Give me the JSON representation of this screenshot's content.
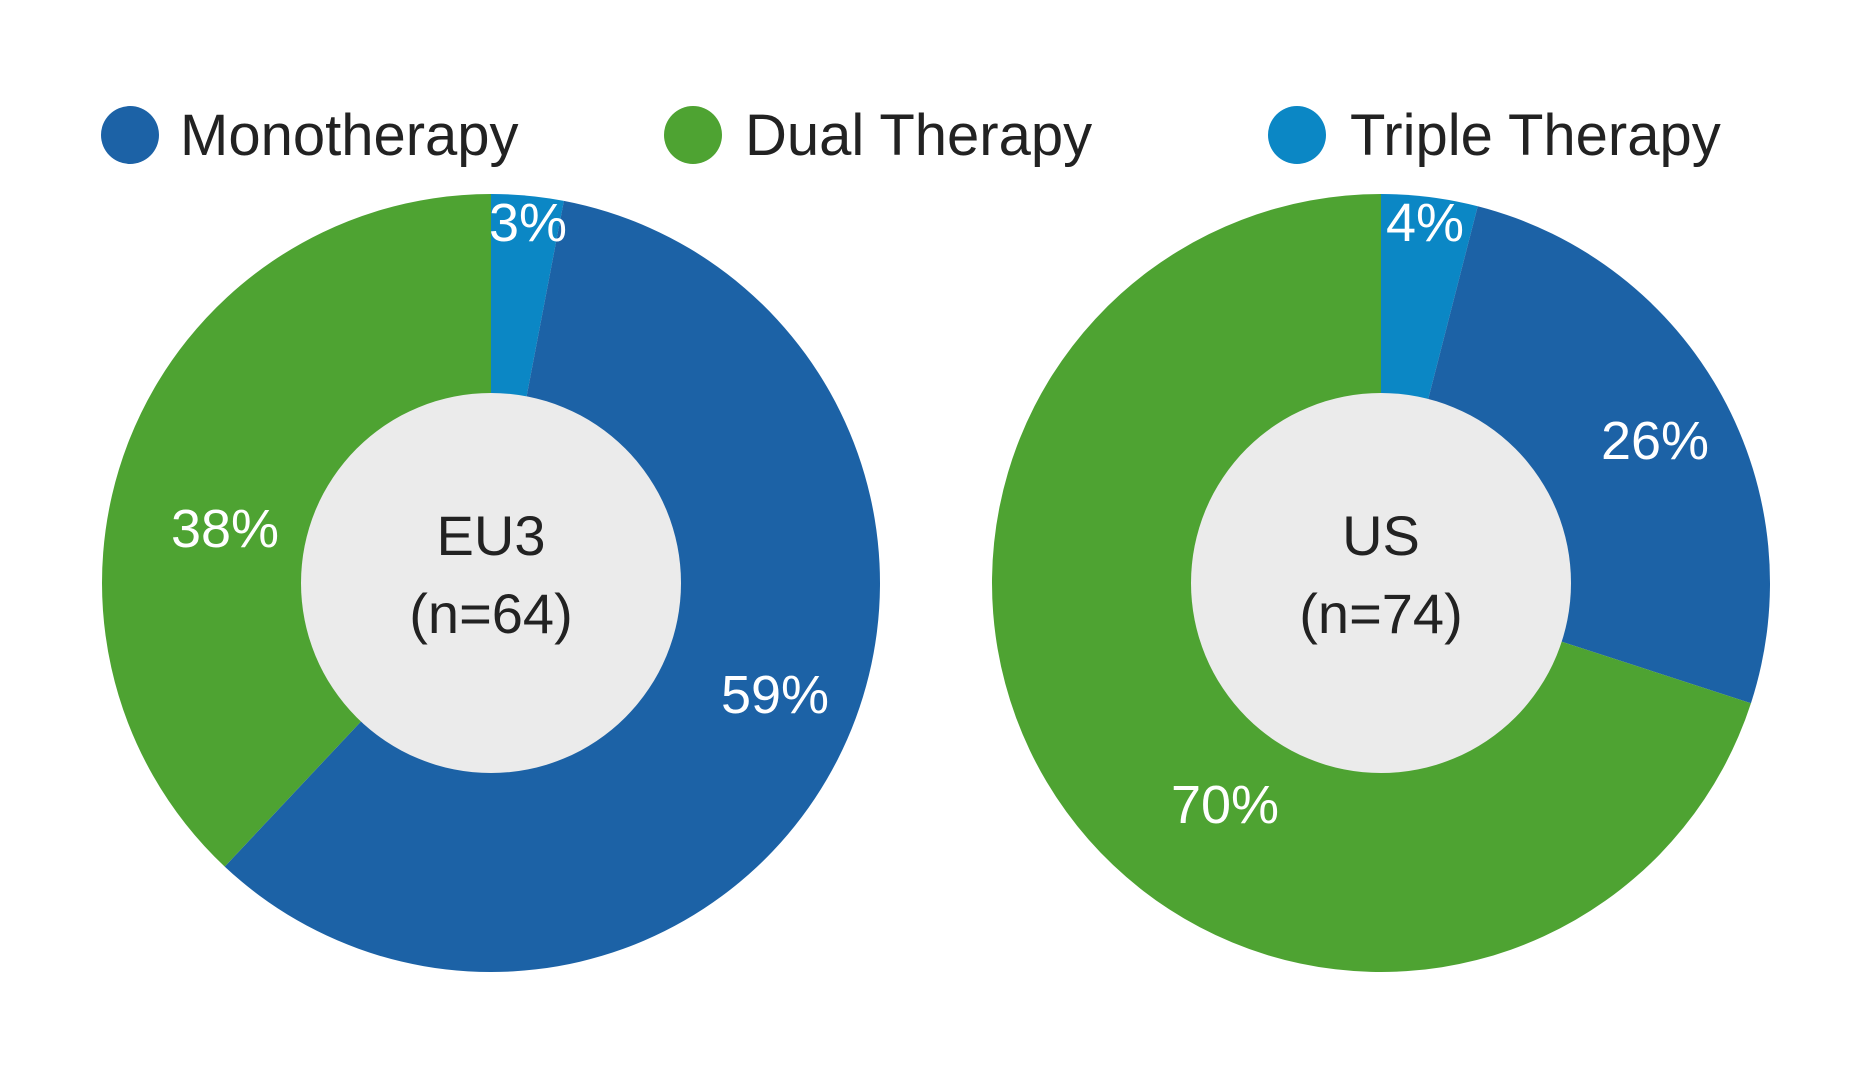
{
  "chart_data": {
    "type": "pie",
    "legend": {
      "placement": "top",
      "items": [
        {
          "name": "Monotherapy",
          "color": "#1c62a6"
        },
        {
          "name": "Dual Therapy",
          "color": "#4ea332"
        },
        {
          "name": "Triple Therapy",
          "color": "#0b87c5"
        }
      ]
    },
    "charts": [
      {
        "center_title": "EU3",
        "center_subtitle": "(n=64)",
        "slices": [
          {
            "name": "Triple Therapy",
            "value": 3,
            "label": "3%",
            "color": "#0b87c5"
          },
          {
            "name": "Monotherapy",
            "value": 59,
            "label": "59%",
            "color": "#1c62a6"
          },
          {
            "name": "Dual Therapy",
            "value": 38,
            "label": "38%",
            "color": "#4ea332"
          }
        ]
      },
      {
        "center_title": "US",
        "center_subtitle": "(n=74)",
        "slices": [
          {
            "name": "Triple Therapy",
            "value": 4,
            "label": "4%",
            "color": "#0b87c5"
          },
          {
            "name": "Monotherapy",
            "value": 26,
            "label": "26%",
            "color": "#1c62a6"
          },
          {
            "name": "Dual Therapy",
            "value": 70,
            "label": "70%",
            "color": "#4ea332"
          }
        ]
      }
    ],
    "center_fill": "#ebebeb"
  }
}
